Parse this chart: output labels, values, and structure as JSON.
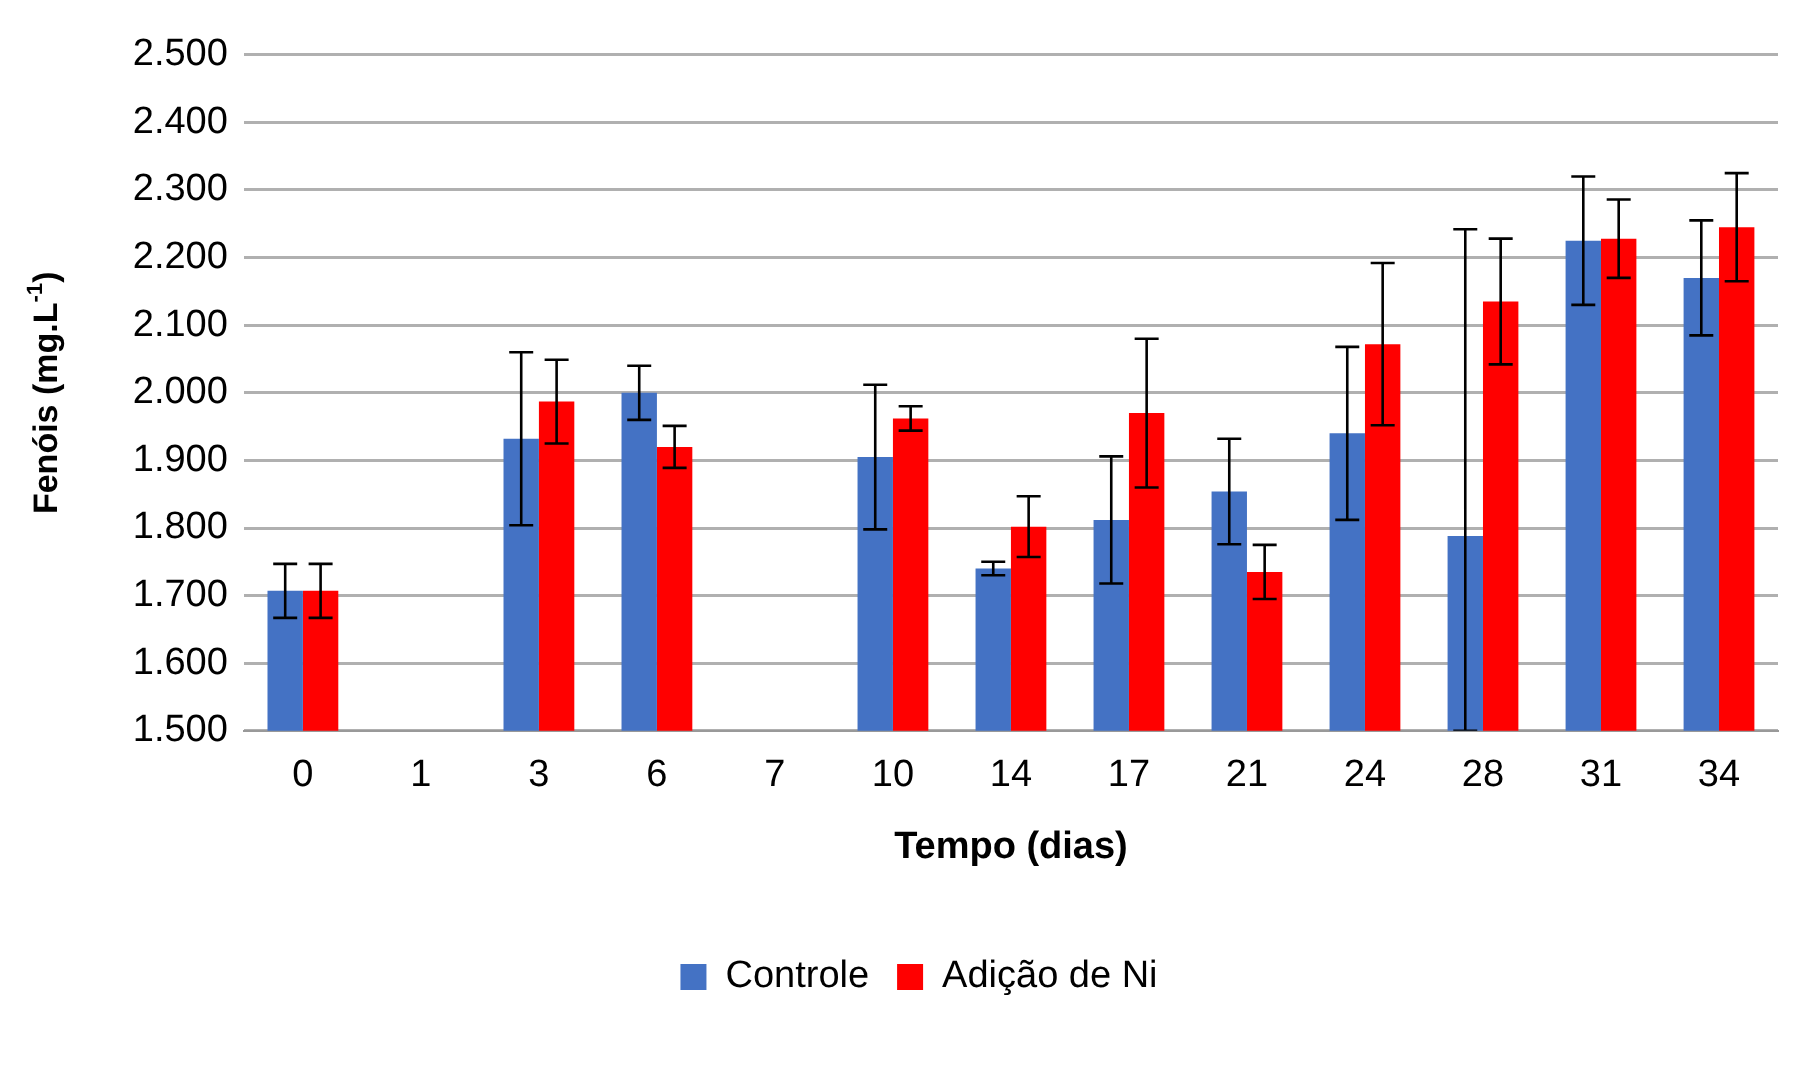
{
  "chart_data": {
    "type": "bar",
    "xlabel": "Tempo (dias)",
    "ylabel": "Fenóis (mg.L$^{-1}$)",
    "categories": [
      "0",
      "1",
      "3",
      "6",
      "7",
      "10",
      "14",
      "17",
      "21",
      "24",
      "28",
      "31",
      "34"
    ],
    "series": [
      {
        "name": "Controle",
        "color": "#4472c4",
        "values": [
          1707,
          null,
          1932,
          2000,
          null,
          1905,
          1740,
          1812,
          1854,
          1940,
          1788,
          2225,
          2170
        ],
        "errors": [
          40,
          null,
          128,
          40,
          null,
          107,
          10,
          94,
          78,
          128,
          [
            1500,
            2242
          ],
          95,
          85
        ]
      },
      {
        "name": "Adição de Ni",
        "color": "#ff0000",
        "values": [
          1707,
          null,
          1987,
          1920,
          null,
          1962,
          1802,
          1970,
          1735,
          2072,
          2135,
          2228,
          2245
        ],
        "errors": [
          40,
          null,
          62,
          31,
          null,
          18,
          45,
          110,
          40,
          120,
          93,
          58,
          80
        ]
      }
    ],
    "ylim": [
      1500,
      2500
    ],
    "yticks": [
      {
        "value": 1500,
        "label": "1.500"
      },
      {
        "value": 1600,
        "label": "1.600"
      },
      {
        "value": 1700,
        "label": "1.700"
      },
      {
        "value": 1800,
        "label": "1.800"
      },
      {
        "value": 1900,
        "label": "1.900"
      },
      {
        "value": 2000,
        "label": "2.000"
      },
      {
        "value": 2100,
        "label": "2.100"
      },
      {
        "value": 2200,
        "label": "2.200"
      },
      {
        "value": 2300,
        "label": "2.300"
      },
      {
        "value": 2400,
        "label": "2.400"
      },
      {
        "value": 2500,
        "label": "2.500"
      }
    ],
    "grid": "y",
    "legend": "bottom"
  }
}
